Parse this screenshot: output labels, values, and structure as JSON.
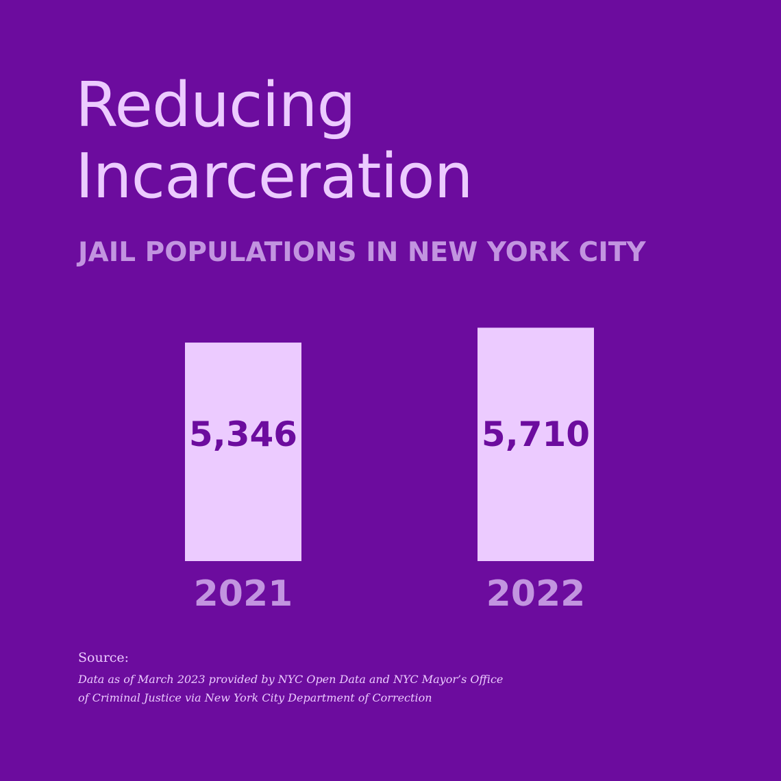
{
  "title_lines": [
    "Reducing",
    "Incarceration"
  ],
  "subtitle": "JAIL POPULATIONS IN NEW YORK CITY",
  "colors": {
    "background": "#6c0c9e",
    "bar": "#eccbff",
    "value_label": "#6c0c9e",
    "category_label": "#c294e0"
  },
  "chart_data": {
    "type": "bar",
    "title": "",
    "xlabel": "",
    "ylabel": "",
    "categories": [
      "2021",
      "2022"
    ],
    "values": [
      5346,
      5710
    ],
    "value_labels": [
      "5,346",
      "5,710"
    ],
    "grid": false,
    "legend": "none"
  },
  "source": {
    "label": "Source:",
    "text": "Data as of March 2023 provided by NYC Open Data and NYC Mayor’s Office of Criminal Justice via New York City Department of Correction"
  }
}
